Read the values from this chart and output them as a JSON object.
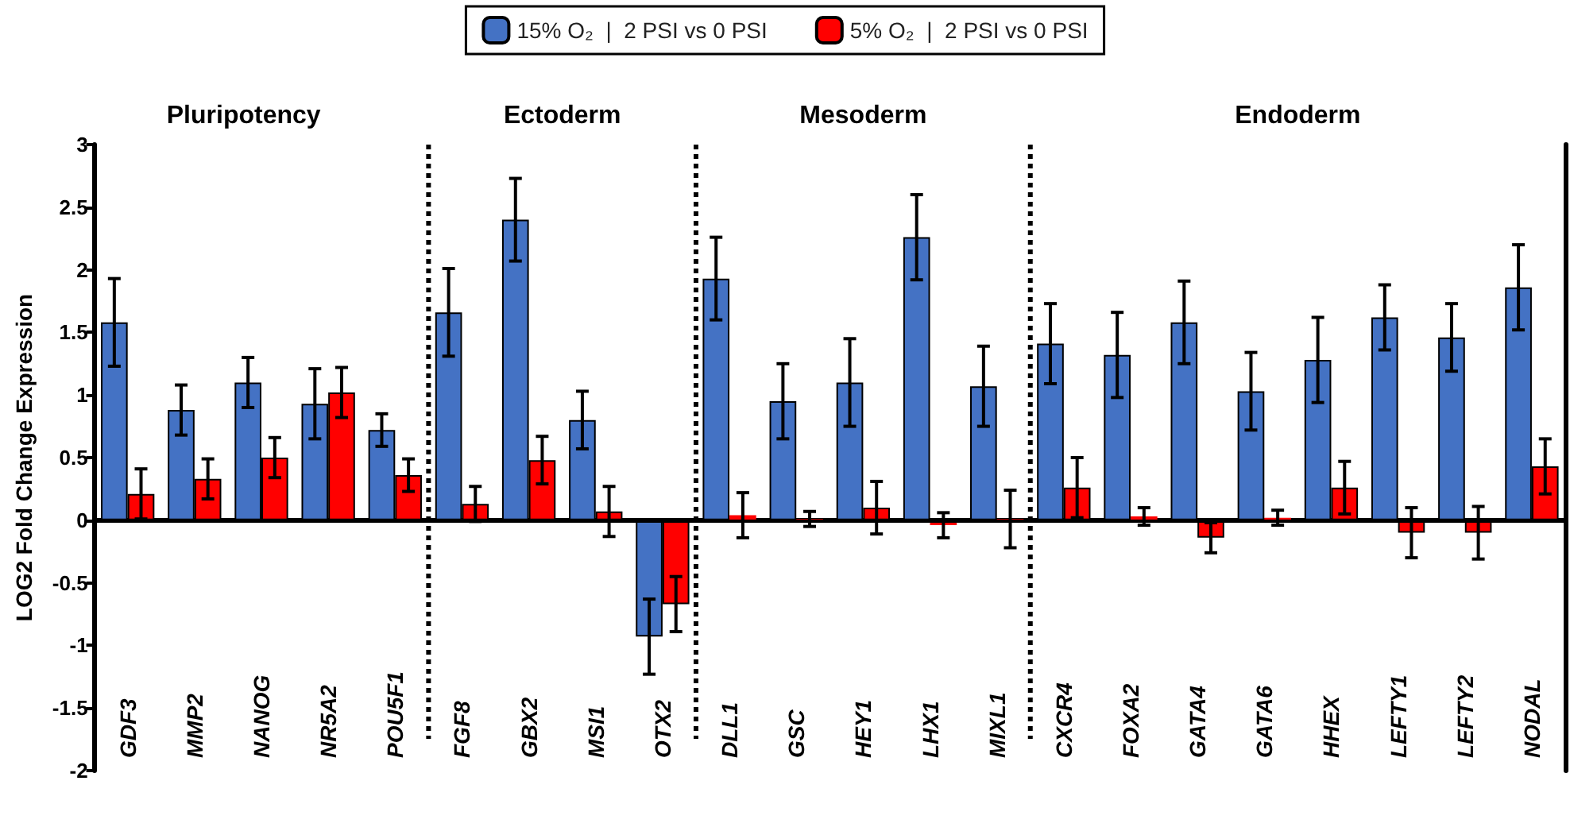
{
  "chart_data": {
    "type": "bar",
    "ylabel": "LOG2 Fold Change Expression",
    "categories": [
      "GDF3",
      "MMP2",
      "NANOG",
      "NR5A2",
      "POU5F1",
      "FGF8",
      "GBX2",
      "MSI1",
      "OTX2",
      "DLL1",
      "GSC",
      "HEY1",
      "LHX1",
      "MIXL1",
      "CXCR4",
      "FOXA2",
      "GATA4",
      "GATA6",
      "HHEX",
      "LEFTY1",
      "LEFTY2",
      "NODAL"
    ],
    "series": [
      {
        "name": "15% O₂  |  2 PSI vs 0 PSI",
        "color": "#4472c4",
        "values": [
          1.58,
          0.88,
          1.1,
          0.93,
          0.72,
          1.66,
          2.4,
          0.8,
          -0.93,
          1.93,
          0.95,
          1.1,
          2.26,
          1.07,
          1.41,
          1.32,
          1.58,
          1.03,
          1.28,
          1.62,
          1.46,
          1.86
        ],
        "errors": [
          0.35,
          0.2,
          0.2,
          0.28,
          0.13,
          0.35,
          0.33,
          0.23,
          0.3,
          0.33,
          0.3,
          0.35,
          0.34,
          0.32,
          0.32,
          0.34,
          0.33,
          0.31,
          0.34,
          0.26,
          0.27,
          0.34
        ]
      },
      {
        "name": "5% O₂  |  2 PSI vs 0 PSI",
        "color": "#ff0000",
        "values": [
          0.21,
          0.33,
          0.5,
          1.02,
          0.36,
          0.13,
          0.48,
          0.07,
          -0.67,
          0.04,
          0.01,
          0.1,
          -0.04,
          0.01,
          0.26,
          0.03,
          -0.14,
          0.02,
          0.26,
          -0.1,
          -0.1,
          0.43
        ],
        "errors": [
          0.2,
          0.16,
          0.16,
          0.2,
          0.13,
          0.14,
          0.19,
          0.2,
          0.22,
          0.18,
          0.06,
          0.21,
          0.1,
          0.23,
          0.24,
          0.07,
          0.12,
          0.06,
          0.21,
          0.2,
          0.21,
          0.22
        ]
      }
    ],
    "ylim": [
      -2,
      3
    ],
    "yticks": [
      -2,
      -1.5,
      -1,
      -0.5,
      0,
      0.5,
      1,
      1.5,
      2,
      2.5,
      3
    ],
    "annotations": [
      "Pluripotency",
      "Ectoderm",
      "Mesoderm",
      "Endoderm"
    ],
    "grid": false,
    "legend": "top"
  }
}
